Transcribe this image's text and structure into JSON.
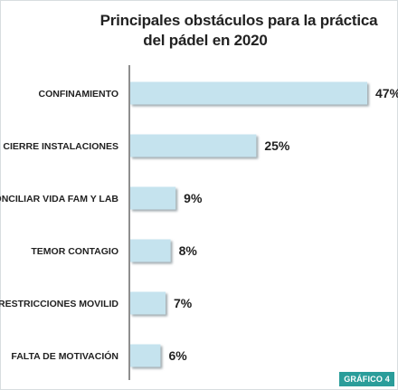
{
  "title_line1": "Principales obstáculos para la práctica",
  "title_line2": "del pádel en 2020",
  "badge": "GRÁFICO 4",
  "colors": {
    "bar": "#c5e3ee",
    "bar_shadow": "#9aa9b1",
    "axis": "#444444",
    "text": "#222222"
  },
  "chart_data": {
    "type": "bar",
    "orientation": "horizontal",
    "title": "Principales obstáculos para la práctica del pádel en 2020",
    "categories": [
      "CONFINAMIENTO",
      "CIERRE INSTALACIONES",
      "CONCILIAR VIDA FAM Y LAB",
      "TEMOR CONTAGIO",
      "RESTRICCIONES MOVILID",
      "FALTA DE MOTIVACIÓN"
    ],
    "values": [
      47,
      25,
      9,
      8,
      7,
      6
    ],
    "value_labels": [
      "47%",
      "25%",
      "9%",
      "8%",
      "7%",
      "6%"
    ],
    "xlim": [
      0,
      50
    ],
    "grid": false,
    "legend": "none"
  }
}
